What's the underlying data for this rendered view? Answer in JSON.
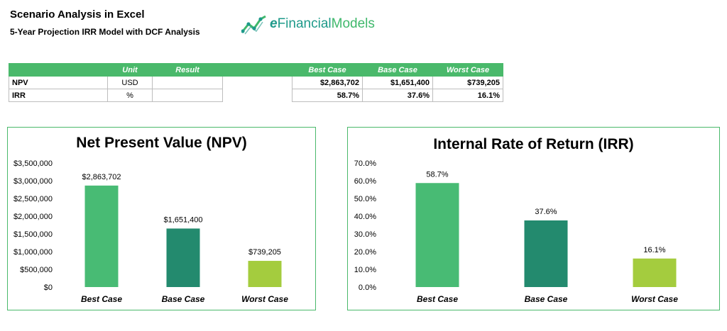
{
  "header": {
    "title": "Scenario Analysis in Excel",
    "subtitle": "5-Year Projection IRR Model with DCF Analysis"
  },
  "logo": {
    "icon": "chart-line-icon",
    "part1": "e",
    "part2": "Financial",
    "part3": "Models"
  },
  "table": {
    "headers": [
      "",
      "Unit",
      "Result",
      "",
      "Best Case",
      "Base Case",
      "Worst Case"
    ],
    "rows": [
      {
        "label": "NPV",
        "unit": "USD",
        "result": "",
        "best": "$2,863,702",
        "base": "$1,651,400",
        "worst": "$739,205"
      },
      {
        "label": "IRR",
        "unit": "%",
        "result": "",
        "best": "58.7%",
        "base": "37.6%",
        "worst": "16.1%"
      }
    ]
  },
  "colors": {
    "best": "#48bb74",
    "base": "#238a6e",
    "worst": "#a4cc3e",
    "accent": "#4ab96b"
  },
  "chart_data": [
    {
      "type": "bar",
      "title": "Net Present Value (NPV)",
      "categories": [
        "Best Case",
        "Base Case",
        "Worst Case"
      ],
      "values": [
        2863702,
        1651400,
        739205
      ],
      "data_labels": [
        "$2,863,702",
        "$1,651,400",
        "$739,205"
      ],
      "ylim": [
        0,
        3500000
      ],
      "yticks": [
        0,
        500000,
        1000000,
        1500000,
        2000000,
        2500000,
        3000000,
        3500000
      ],
      "ytick_labels": [
        "$0",
        "$500,000",
        "$1,000,000",
        "$1,500,000",
        "$2,000,000",
        "$2,500,000",
        "$3,000,000",
        "$3,500,000"
      ],
      "grid": false,
      "legend": "none"
    },
    {
      "type": "bar",
      "title": "Internal Rate of Return (IRR)",
      "categories": [
        "Best Case",
        "Base Case",
        "Worst Case"
      ],
      "values": [
        58.7,
        37.6,
        16.1
      ],
      "data_labels": [
        "58.7%",
        "37.6%",
        "16.1%"
      ],
      "ylim": [
        0,
        70
      ],
      "yticks": [
        0,
        10,
        20,
        30,
        40,
        50,
        60,
        70
      ],
      "ytick_labels": [
        "0.0%",
        "10.0%",
        "20.0%",
        "30.0%",
        "40.0%",
        "50.0%",
        "60.0%",
        "70.0%"
      ],
      "grid": false,
      "legend": "none"
    }
  ]
}
